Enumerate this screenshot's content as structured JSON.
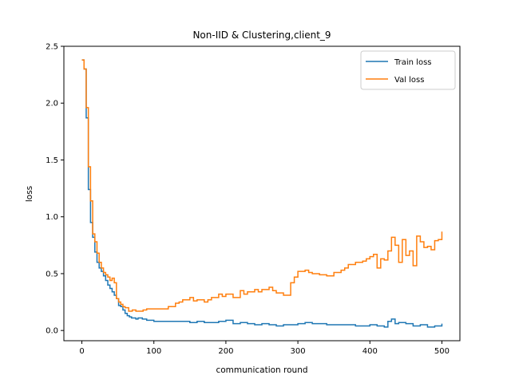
{
  "chart_data": {
    "type": "line",
    "title": "Non-IID & Clustering,client_9",
    "xlabel": "communication round",
    "ylabel": "loss",
    "xlim": [
      -25,
      525
    ],
    "ylim": [
      -0.09,
      2.5
    ],
    "xticks": [
      0,
      100,
      200,
      300,
      400,
      500
    ],
    "yticks": [
      0.0,
      0.5,
      1.0,
      1.5,
      2.0,
      2.5
    ],
    "xtick_labels": [
      "0",
      "100",
      "200",
      "300",
      "400",
      "500"
    ],
    "ytick_labels": [
      "0.0",
      "0.5",
      "1.0",
      "1.5",
      "2.0",
      "2.5"
    ],
    "grid": false,
    "legend_position": "top-right",
    "step": true,
    "series": [
      {
        "name": "Train loss",
        "color": "#1f77b4",
        "x": [
          0,
          3,
          6,
          9,
          12,
          15,
          18,
          21,
          24,
          27,
          30,
          33,
          36,
          39,
          42,
          45,
          48,
          51,
          54,
          57,
          60,
          63,
          66,
          69,
          72,
          75,
          78,
          81,
          84,
          87,
          90,
          95,
          100,
          110,
          120,
          130,
          140,
          150,
          160,
          170,
          180,
          190,
          200,
          210,
          220,
          230,
          240,
          250,
          260,
          270,
          280,
          290,
          300,
          310,
          320,
          330,
          340,
          350,
          360,
          370,
          380,
          390,
          400,
          410,
          420,
          425,
          430,
          435,
          440,
          450,
          460,
          470,
          480,
          490,
          500
        ],
        "y": [
          2.38,
          2.3,
          1.87,
          1.24,
          0.95,
          0.82,
          0.69,
          0.6,
          0.55,
          0.52,
          0.48,
          0.44,
          0.4,
          0.37,
          0.34,
          0.31,
          0.28,
          0.22,
          0.21,
          0.18,
          0.15,
          0.13,
          0.12,
          0.11,
          0.11,
          0.1,
          0.11,
          0.11,
          0.1,
          0.1,
          0.09,
          0.09,
          0.08,
          0.08,
          0.08,
          0.08,
          0.08,
          0.07,
          0.08,
          0.07,
          0.07,
          0.08,
          0.09,
          0.06,
          0.07,
          0.06,
          0.05,
          0.06,
          0.05,
          0.04,
          0.05,
          0.05,
          0.06,
          0.07,
          0.06,
          0.06,
          0.05,
          0.05,
          0.05,
          0.05,
          0.04,
          0.04,
          0.05,
          0.04,
          0.03,
          0.08,
          0.1,
          0.06,
          0.07,
          0.06,
          0.04,
          0.05,
          0.03,
          0.04,
          0.06
        ]
      },
      {
        "name": "Val loss",
        "color": "#ff7f0e",
        "x": [
          0,
          3,
          6,
          9,
          12,
          15,
          18,
          21,
          24,
          27,
          30,
          33,
          36,
          39,
          42,
          45,
          48,
          51,
          54,
          57,
          60,
          65,
          70,
          75,
          80,
          85,
          90,
          100,
          110,
          120,
          130,
          135,
          140,
          150,
          155,
          160,
          170,
          175,
          180,
          190,
          195,
          200,
          210,
          220,
          225,
          230,
          240,
          245,
          250,
          260,
          265,
          270,
          280,
          290,
          295,
          300,
          310,
          315,
          320,
          330,
          340,
          350,
          360,
          365,
          370,
          380,
          390,
          395,
          400,
          405,
          410,
          415,
          420,
          425,
          430,
          435,
          440,
          445,
          450,
          455,
          460,
          465,
          470,
          475,
          480,
          485,
          490,
          495,
          500
        ],
        "y": [
          2.38,
          2.3,
          1.96,
          1.44,
          1.14,
          0.85,
          0.78,
          0.68,
          0.6,
          0.55,
          0.51,
          0.49,
          0.47,
          0.44,
          0.46,
          0.42,
          0.28,
          0.25,
          0.23,
          0.21,
          0.2,
          0.17,
          0.18,
          0.17,
          0.17,
          0.18,
          0.19,
          0.19,
          0.19,
          0.21,
          0.24,
          0.25,
          0.27,
          0.29,
          0.26,
          0.27,
          0.25,
          0.27,
          0.29,
          0.32,
          0.3,
          0.32,
          0.29,
          0.35,
          0.32,
          0.34,
          0.36,
          0.34,
          0.36,
          0.38,
          0.35,
          0.33,
          0.31,
          0.42,
          0.47,
          0.52,
          0.53,
          0.51,
          0.5,
          0.49,
          0.48,
          0.51,
          0.53,
          0.55,
          0.58,
          0.6,
          0.61,
          0.63,
          0.65,
          0.67,
          0.55,
          0.63,
          0.62,
          0.7,
          0.82,
          0.75,
          0.6,
          0.8,
          0.66,
          0.7,
          0.57,
          0.83,
          0.78,
          0.73,
          0.74,
          0.71,
          0.79,
          0.8,
          0.87
        ]
      }
    ]
  }
}
